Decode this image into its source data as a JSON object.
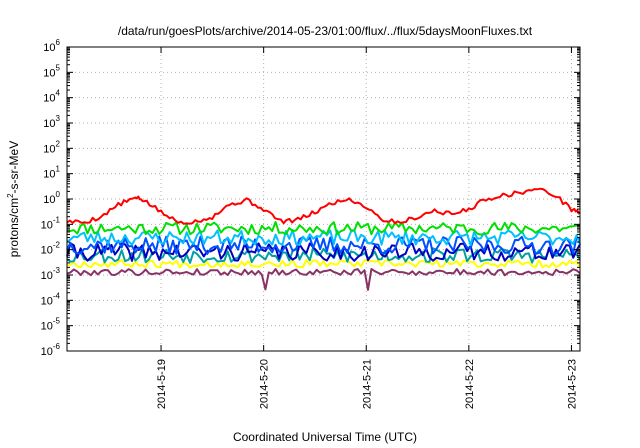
{
  "chart_data": {
    "type": "line",
    "title": "/data/run/goesPlots/archive/2014-05-23/01:00/flux/../flux/5daysMoonFluxes.txt",
    "xlabel": "Coordinated Universal Time (UTC)",
    "ylabel": "protons/cm²-s-sr-MeV",
    "y_scale": "log",
    "ylim": [
      1e-06,
      1000000.0
    ],
    "xlim": [
      "2014-05-18 02:00",
      "2014-05-23 02:00"
    ],
    "grid": true,
    "legend": "none",
    "y_ticks": [
      {
        "value": 1e-06,
        "base": "10",
        "exp": "-6"
      },
      {
        "value": 1e-05,
        "base": "10",
        "exp": "-5"
      },
      {
        "value": 0.0001,
        "base": "10",
        "exp": "-4"
      },
      {
        "value": 0.001,
        "base": "10",
        "exp": "-3"
      },
      {
        "value": 0.01,
        "base": "10",
        "exp": "-2"
      },
      {
        "value": 0.1,
        "base": "10",
        "exp": "-1"
      },
      {
        "value": 1,
        "base": "10",
        "exp": "0"
      },
      {
        "value": 10,
        "base": "10",
        "exp": "1"
      },
      {
        "value": 100,
        "base": "10",
        "exp": "2"
      },
      {
        "value": 1000,
        "base": "10",
        "exp": "3"
      },
      {
        "value": 10000,
        "base": "10",
        "exp": "4"
      },
      {
        "value": 100000,
        "base": "10",
        "exp": "5"
      },
      {
        "value": 1000000,
        "base": "10",
        "exp": "6"
      }
    ],
    "x_ticks": [
      {
        "value": "2014-05-19 00:00",
        "label": "2014-5-19"
      },
      {
        "value": "2014-05-20 00:00",
        "label": "2014-5-20"
      },
      {
        "value": "2014-05-21 00:00",
        "label": "2014-5-21"
      },
      {
        "value": "2014-05-22 00:00",
        "label": "2014-5-22"
      },
      {
        "value": "2014-05-23 00:00",
        "label": "2014-5-23"
      }
    ],
    "series": [
      {
        "color": "#ff0000",
        "points": [
          [
            "2014-05-18 02:00",
            0.13
          ],
          [
            "2014-05-18 06:00",
            0.12
          ],
          [
            "2014-05-18 10:00",
            0.2
          ],
          [
            "2014-05-18 14:00",
            0.6
          ],
          [
            "2014-05-18 18:00",
            1.1
          ],
          [
            "2014-05-18 20:00",
            0.9
          ],
          [
            "2014-05-19 00:00",
            0.3
          ],
          [
            "2014-05-19 04:00",
            0.12
          ],
          [
            "2014-05-19 08:00",
            0.13
          ],
          [
            "2014-05-19 12:00",
            0.2
          ],
          [
            "2014-05-19 16:00",
            0.6
          ],
          [
            "2014-05-19 20:00",
            0.9
          ],
          [
            "2014-05-20 00:00",
            0.4
          ],
          [
            "2014-05-20 04:00",
            0.13
          ],
          [
            "2014-05-20 08:00",
            0.15
          ],
          [
            "2014-05-20 12:00",
            0.3
          ],
          [
            "2014-05-20 16:00",
            0.7
          ],
          [
            "2014-05-20 20:00",
            1.0
          ],
          [
            "2014-05-21 00:00",
            0.5
          ],
          [
            "2014-05-21 04:00",
            0.15
          ],
          [
            "2014-05-21 08:00",
            0.12
          ],
          [
            "2014-05-21 12:00",
            0.2
          ],
          [
            "2014-05-21 16:00",
            0.35
          ],
          [
            "2014-05-21 20:00",
            0.25
          ],
          [
            "2014-05-22 00:00",
            0.4
          ],
          [
            "2014-05-22 04:00",
            1.0
          ],
          [
            "2014-05-22 08:00",
            1.4
          ],
          [
            "2014-05-22 12:00",
            1.8
          ],
          [
            "2014-05-22 16:00",
            2.5
          ],
          [
            "2014-05-22 20:00",
            1.5
          ],
          [
            "2014-05-23 00:00",
            0.4
          ],
          [
            "2014-05-23 02:00",
            0.3
          ]
        ]
      },
      {
        "color": "#00e000",
        "base": 0.07,
        "amp": 0.5,
        "seed": 11
      },
      {
        "color": "#00c0ff",
        "base": 0.03,
        "amp": 0.6,
        "seed": 23
      },
      {
        "color": "#0050ff",
        "base": 0.015,
        "amp": 0.7,
        "seed": 37
      },
      {
        "color": "#0000c0",
        "base": 0.008,
        "amp": 0.7,
        "seed": 41
      },
      {
        "color": "#00a0a0",
        "base": 0.006,
        "amp": 0.6,
        "seed": 53
      },
      {
        "color": "#ffff00",
        "base": 0.0028,
        "amp": 0.3,
        "seed": 67
      },
      {
        "color": "#883366",
        "base": 0.0013,
        "amp": 0.25,
        "seed": 79
      }
    ]
  }
}
